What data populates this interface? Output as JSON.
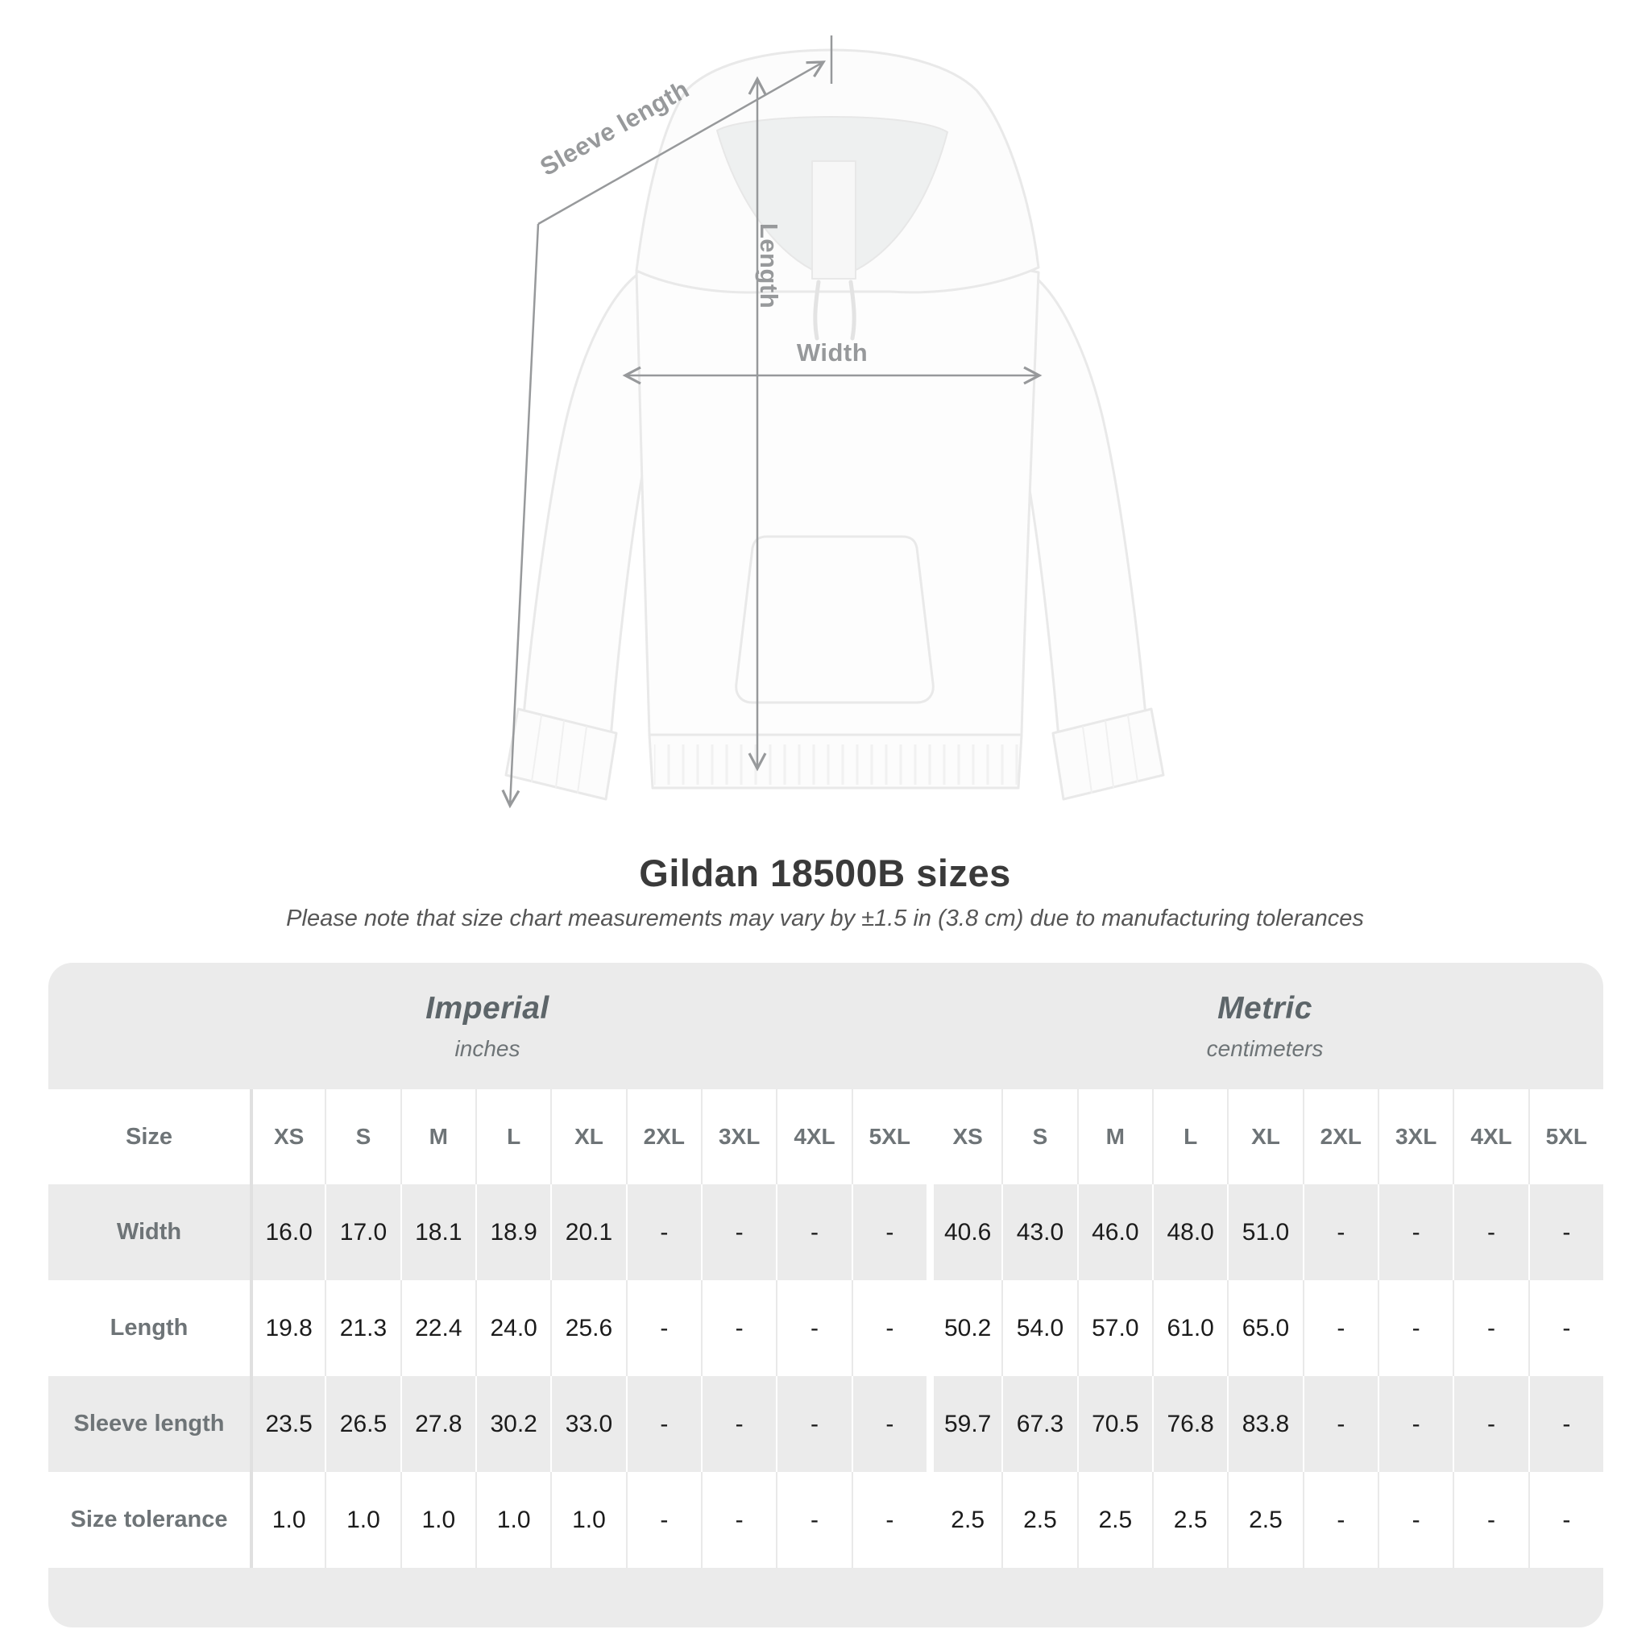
{
  "title": "Gildan 18500B sizes",
  "note": "Please note that size chart measurements may vary by ±1.5 in (3.8 cm) due to manufacturing tolerances",
  "diagram": {
    "sleeve_label": "Sleeve length",
    "length_label": "Length",
    "width_label": "Width"
  },
  "units": {
    "imperial": {
      "title": "Imperial",
      "subtitle": "inches"
    },
    "metric": {
      "title": "Metric",
      "subtitle": "centimeters"
    }
  },
  "table": {
    "size_label": "Size",
    "sizes": [
      "XS",
      "S",
      "M",
      "L",
      "XL",
      "2XL",
      "3XL",
      "4XL",
      "5XL"
    ],
    "rows": [
      {
        "label": "Width",
        "shaded": true,
        "imperial": [
          "16.0",
          "17.0",
          "18.1",
          "18.9",
          "20.1",
          "-",
          "-",
          "-",
          "-"
        ],
        "metric": [
          "40.6",
          "43.0",
          "46.0",
          "48.0",
          "51.0",
          "-",
          "-",
          "-",
          "-"
        ]
      },
      {
        "label": "Length",
        "shaded": false,
        "imperial": [
          "19.8",
          "21.3",
          "22.4",
          "24.0",
          "25.6",
          "-",
          "-",
          "-",
          "-"
        ],
        "metric": [
          "50.2",
          "54.0",
          "57.0",
          "61.0",
          "65.0",
          "-",
          "-",
          "-",
          "-"
        ]
      },
      {
        "label": "Sleeve length",
        "shaded": true,
        "imperial": [
          "23.5",
          "26.5",
          "27.8",
          "30.2",
          "33.0",
          "-",
          "-",
          "-",
          "-"
        ],
        "metric": [
          "59.7",
          "67.3",
          "70.5",
          "76.8",
          "83.8",
          "-",
          "-",
          "-",
          "-"
        ]
      },
      {
        "label": "Size tolerance",
        "shaded": false,
        "imperial": [
          "1.0",
          "1.0",
          "1.0",
          "1.0",
          "1.0",
          "-",
          "-",
          "-",
          "-"
        ],
        "metric": [
          "2.5",
          "2.5",
          "2.5",
          "2.5",
          "2.5",
          "-",
          "-",
          "-",
          "-"
        ]
      }
    ]
  },
  "colors": {
    "stripe": "#ebebeb",
    "label_text": "#6e7477",
    "value_text": "#1b1b1b",
    "annotation": "#97999b",
    "title_text": "#3a3a3a",
    "note_text": "#565656"
  },
  "chart_data": {
    "type": "table",
    "title": "Gildan 18500B sizes",
    "note": "Please note that size chart measurements may vary by ±1.5 in (3.8 cm) due to manufacturing tolerances",
    "column_groups": [
      "Imperial (inches)",
      "Metric (centimeters)"
    ],
    "sizes": [
      "XS",
      "S",
      "M",
      "L",
      "XL",
      "2XL",
      "3XL",
      "4XL",
      "5XL"
    ],
    "rows": [
      {
        "measurement": "Width",
        "imperial_in": [
          16.0,
          17.0,
          18.1,
          18.9,
          20.1,
          null,
          null,
          null,
          null
        ],
        "metric_cm": [
          40.6,
          43.0,
          46.0,
          48.0,
          51.0,
          null,
          null,
          null,
          null
        ]
      },
      {
        "measurement": "Length",
        "imperial_in": [
          19.8,
          21.3,
          22.4,
          24.0,
          25.6,
          null,
          null,
          null,
          null
        ],
        "metric_cm": [
          50.2,
          54.0,
          57.0,
          61.0,
          65.0,
          null,
          null,
          null,
          null
        ]
      },
      {
        "measurement": "Sleeve length",
        "imperial_in": [
          23.5,
          26.5,
          27.8,
          30.2,
          33.0,
          null,
          null,
          null,
          null
        ],
        "metric_cm": [
          59.7,
          67.3,
          70.5,
          76.8,
          83.8,
          null,
          null,
          null,
          null
        ]
      },
      {
        "measurement": "Size tolerance",
        "imperial_in": [
          1.0,
          1.0,
          1.0,
          1.0,
          1.0,
          null,
          null,
          null,
          null
        ],
        "metric_cm": [
          2.5,
          2.5,
          2.5,
          2.5,
          2.5,
          null,
          null,
          null,
          null
        ]
      }
    ]
  }
}
